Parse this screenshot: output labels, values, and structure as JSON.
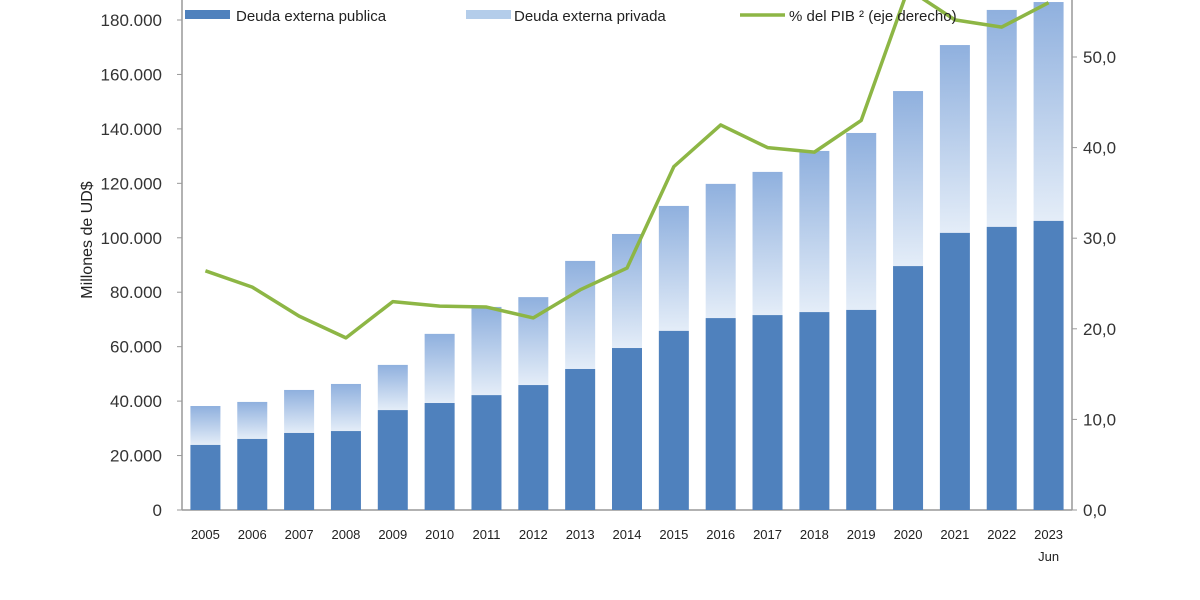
{
  "chart_data": {
    "type": "bar",
    "stacked": true,
    "categories": [
      "2005",
      "2006",
      "2007",
      "2008",
      "2009",
      "2010",
      "2011",
      "2012",
      "2013",
      "2014",
      "2015",
      "2016",
      "2017",
      "2018",
      "2019",
      "2020",
      "2021",
      "2022",
      "2023"
    ],
    "category_sublabels": {
      "2023": "Jun"
    },
    "series": [
      {
        "name": "Deuda externa publica",
        "type": "bar",
        "axis": "left",
        "color": "#4f81bd",
        "values": [
          23900,
          26100,
          28300,
          29000,
          36700,
          39300,
          42200,
          45900,
          51800,
          59500,
          65800,
          70500,
          71600,
          72700,
          73500,
          89600,
          101800,
          104000,
          106200
        ]
      },
      {
        "name": "Deuda externa privada",
        "type": "bar",
        "axis": "left",
        "color": "#a9c4e8",
        "values": [
          14300,
          13600,
          15800,
          17300,
          16600,
          25400,
          32400,
          32300,
          39700,
          41900,
          45900,
          49300,
          52600,
          59200,
          65000,
          64300,
          69000,
          79700,
          80400
        ]
      },
      {
        "name": "% del PIB ² (eje derecho)",
        "type": "line",
        "axis": "right",
        "color": "#8db645",
        "values": [
          26.4,
          24.6,
          21.4,
          19.0,
          23.0,
          22.5,
          22.4,
          21.2,
          24.3,
          26.7,
          37.9,
          42.5,
          40.0,
          39.5,
          43.0,
          57.5,
          54.1,
          53.3,
          56.0
        ]
      }
    ],
    "ylabel": "Millones de UD$",
    "ylim": [
      0,
      180000
    ],
    "y_ticks": [
      "0",
      "20.000",
      "40.000",
      "60.000",
      "80.000",
      "100.000",
      "120.000",
      "140.000",
      "160.000",
      "180.000"
    ],
    "y2lim": [
      0,
      50
    ],
    "y2_ticks": [
      "0,0",
      "10,0",
      "20,0",
      "30,0",
      "40,0",
      "50,0"
    ],
    "legend_position": "top"
  }
}
